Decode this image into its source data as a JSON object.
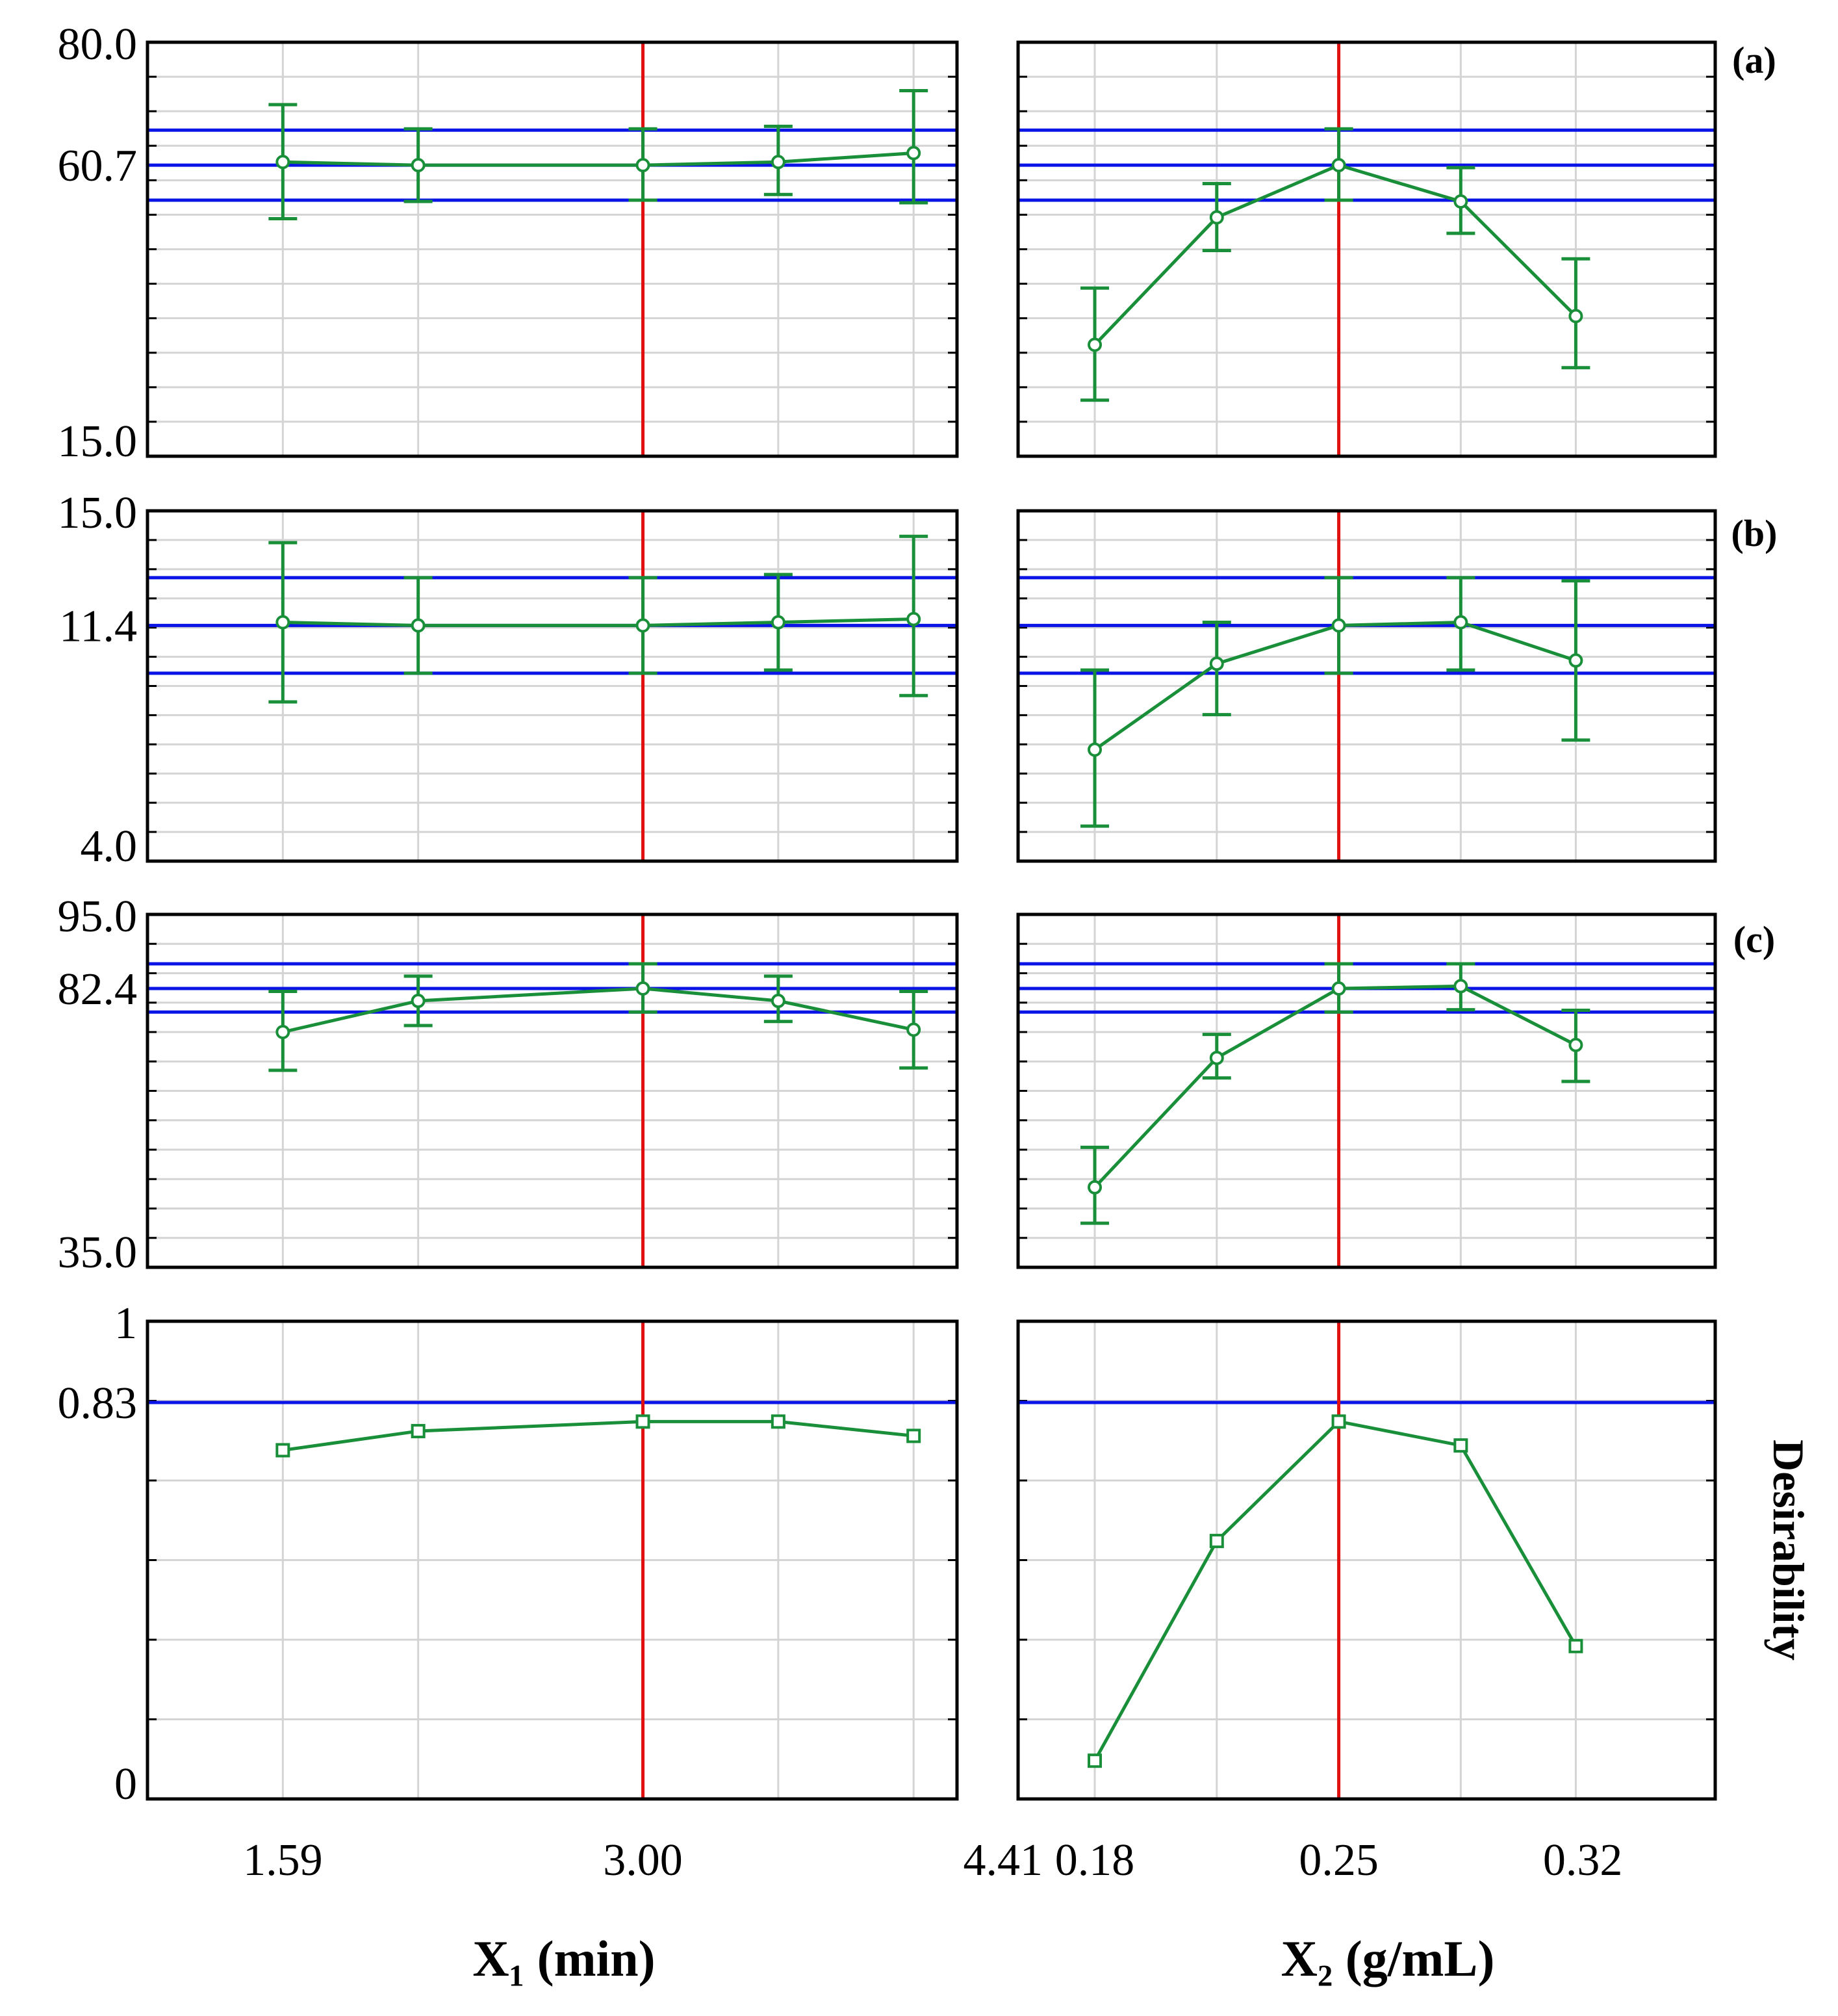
{
  "colors": {
    "series": "#1a8f3a",
    "reference": "#0a14e6",
    "optimum": "#e01010",
    "grid": "#d4d4d4",
    "frame": "#000000"
  },
  "x_axes": {
    "x1": {
      "title": "X₁ (min)",
      "ticks": [
        "1.59",
        "3.00",
        "4.41"
      ],
      "tick_values": [
        1.59,
        3.0,
        4.41
      ],
      "xlim": [
        1.06,
        4.23
      ],
      "optimum": 3.0
    },
    "x2": {
      "title": "X₂ (g/mL)",
      "ticks": [
        "0.18",
        "0.25",
        "0.32"
      ],
      "tick_values": [
        0.18,
        0.25,
        0.32
      ],
      "xlim": [
        0.158,
        0.358
      ],
      "optimum": 0.25
    }
  },
  "chart_data": [
    {
      "type": "line",
      "row": "a",
      "tag": "(a)",
      "ylim": [
        15.0,
        80.0
      ],
      "yticks": [
        "80.0",
        "60.7",
        "15.0"
      ],
      "ytick_values": [
        80.0,
        60.7,
        15.0
      ],
      "ytick_decimals": 1,
      "reference_lines": [
        66.2,
        60.7,
        55.2
      ],
      "panels": [
        {
          "factor": "x1",
          "x": [
            1.59,
            2.12,
            3.0,
            3.53,
            4.06
          ],
          "y": [
            61.2,
            60.7,
            60.7,
            61.2,
            62.6
          ],
          "lower": [
            52.3,
            55.0,
            55.2,
            56.1,
            54.8
          ],
          "upper": [
            70.2,
            66.4,
            66.4,
            66.8,
            72.4
          ]
        },
        {
          "factor": "x2",
          "x": [
            0.18,
            0.215,
            0.25,
            0.285,
            0.318
          ],
          "y": [
            32.5,
            52.5,
            60.7,
            55.0,
            37.0
          ],
          "lower": [
            23.8,
            47.3,
            55.2,
            50.0,
            28.9
          ],
          "upper": [
            41.4,
            57.8,
            66.4,
            60.3,
            46.0
          ]
        }
      ]
    },
    {
      "type": "line",
      "row": "b",
      "tag": "(b)",
      "ylim": [
        4.0,
        15.0
      ],
      "yticks": [
        "15.0",
        "11.4",
        "4.0"
      ],
      "ytick_values": [
        15.0,
        11.4,
        4.0
      ],
      "ytick_decimals": 1,
      "reference_lines": [
        12.9,
        11.4,
        9.9
      ],
      "panels": [
        {
          "factor": "x1",
          "x": [
            1.59,
            2.12,
            3.0,
            3.53,
            4.06
          ],
          "y": [
            11.5,
            11.4,
            11.4,
            11.5,
            11.6
          ],
          "lower": [
            9.0,
            9.9,
            9.9,
            10.0,
            9.2
          ],
          "upper": [
            14.0,
            12.9,
            12.9,
            13.0,
            14.2
          ]
        },
        {
          "factor": "x2",
          "x": [
            0.18,
            0.215,
            0.25,
            0.285,
            0.318
          ],
          "y": [
            7.5,
            10.2,
            11.4,
            11.5,
            10.3
          ],
          "lower": [
            5.1,
            8.6,
            9.9,
            10.0,
            7.8
          ],
          "upper": [
            10.0,
            11.5,
            12.9,
            12.9,
            12.8
          ]
        }
      ]
    },
    {
      "type": "line",
      "row": "c",
      "tag": "(c)",
      "ylim": [
        35.0,
        95.0
      ],
      "yticks": [
        "95.0",
        "82.4",
        "35.0"
      ],
      "ytick_values": [
        95.0,
        82.4,
        35.0
      ],
      "ytick_decimals": 1,
      "reference_lines": [
        86.6,
        82.4,
        78.4
      ],
      "panels": [
        {
          "factor": "x1",
          "x": [
            1.59,
            2.12,
            3.0,
            3.53,
            4.06
          ],
          "y": [
            75.0,
            80.3,
            82.4,
            80.3,
            75.4
          ],
          "lower": [
            68.5,
            76.1,
            78.4,
            76.8,
            68.9
          ],
          "upper": [
            81.9,
            84.5,
            86.6,
            84.5,
            81.9
          ]
        },
        {
          "factor": "x2",
          "x": [
            0.18,
            0.215,
            0.25,
            0.285,
            0.318
          ],
          "y": [
            48.6,
            70.6,
            82.4,
            82.8,
            72.8
          ],
          "lower": [
            42.5,
            67.2,
            78.4,
            78.8,
            66.6
          ],
          "upper": [
            55.4,
            74.6,
            86.6,
            86.6,
            78.7
          ]
        }
      ]
    },
    {
      "type": "line",
      "row": "desirability",
      "side_label": "Desirability",
      "ylim": [
        0,
        1
      ],
      "yticks": [
        "1",
        "0.83",
        "0"
      ],
      "ytick_values": [
        1.0,
        0.83,
        0.0
      ],
      "ytick_decimals": 2,
      "reference_lines": [
        0.83
      ],
      "panels": [
        {
          "factor": "x1",
          "x": [
            1.59,
            2.12,
            3.0,
            3.53,
            4.06
          ],
          "y": [
            0.73,
            0.77,
            0.79,
            0.79,
            0.76
          ]
        },
        {
          "factor": "x2",
          "x": [
            0.18,
            0.215,
            0.25,
            0.285,
            0.318
          ],
          "y": [
            0.08,
            0.54,
            0.79,
            0.74,
            0.32
          ]
        }
      ]
    }
  ]
}
